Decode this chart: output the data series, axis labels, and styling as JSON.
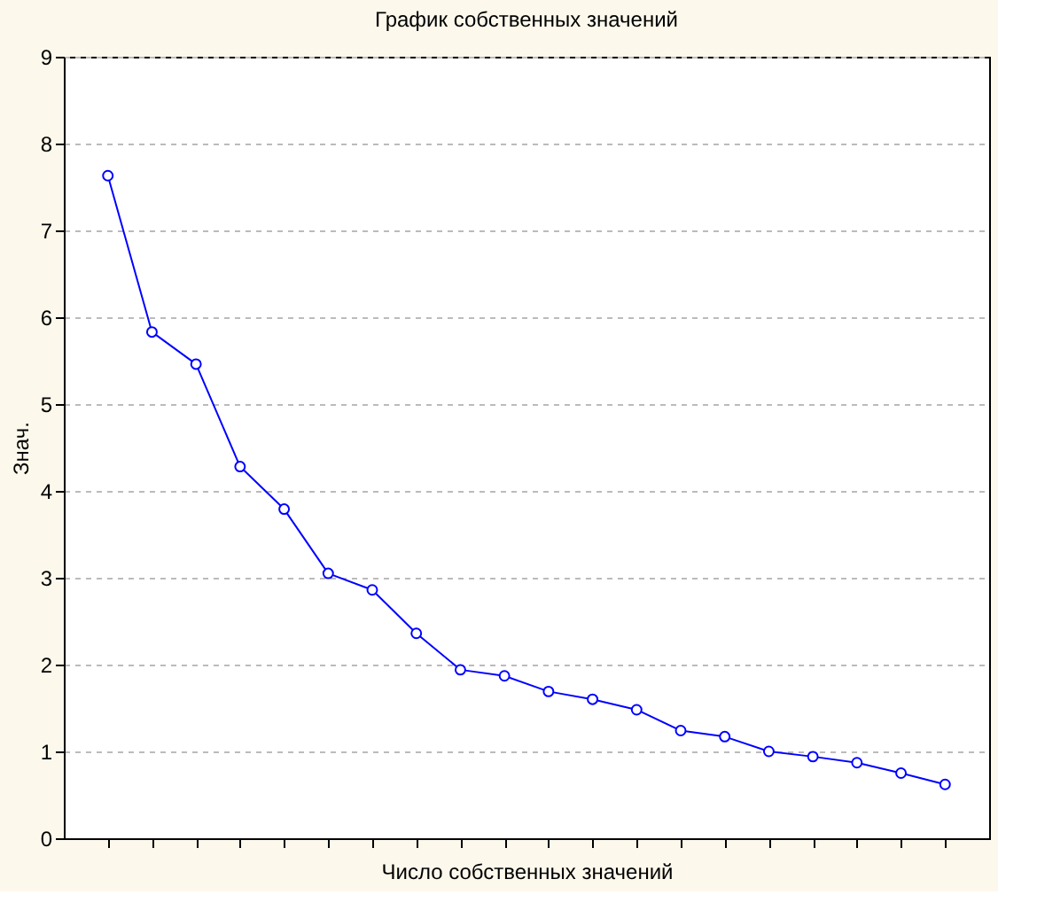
{
  "chart_data": {
    "type": "line",
    "title": "График собственных значений",
    "xlabel": "Число собственных значений",
    "ylabel": "Знач.",
    "categories": [
      null,
      null,
      null,
      null,
      null,
      null,
      null,
      null,
      null,
      null,
      null,
      null,
      null,
      null,
      null,
      null,
      null,
      null,
      null,
      null
    ],
    "series": [
      {
        "color": "#0000ff",
        "values": [
          7.63,
          5.83,
          5.46,
          4.28,
          3.79,
          3.05,
          2.86,
          2.36,
          1.94,
          1.87,
          1.69,
          1.6,
          1.48,
          1.24,
          1.17,
          1.0,
          0.94,
          0.87,
          0.75,
          0.62
        ]
      }
    ],
    "ylim": [
      0,
      9
    ],
    "yticks": [
      0,
      1,
      2,
      3,
      4,
      5,
      6,
      7,
      8,
      9
    ],
    "grid": "y",
    "marker": "circle",
    "line_style": "solid",
    "tick_labels": "y"
  }
}
